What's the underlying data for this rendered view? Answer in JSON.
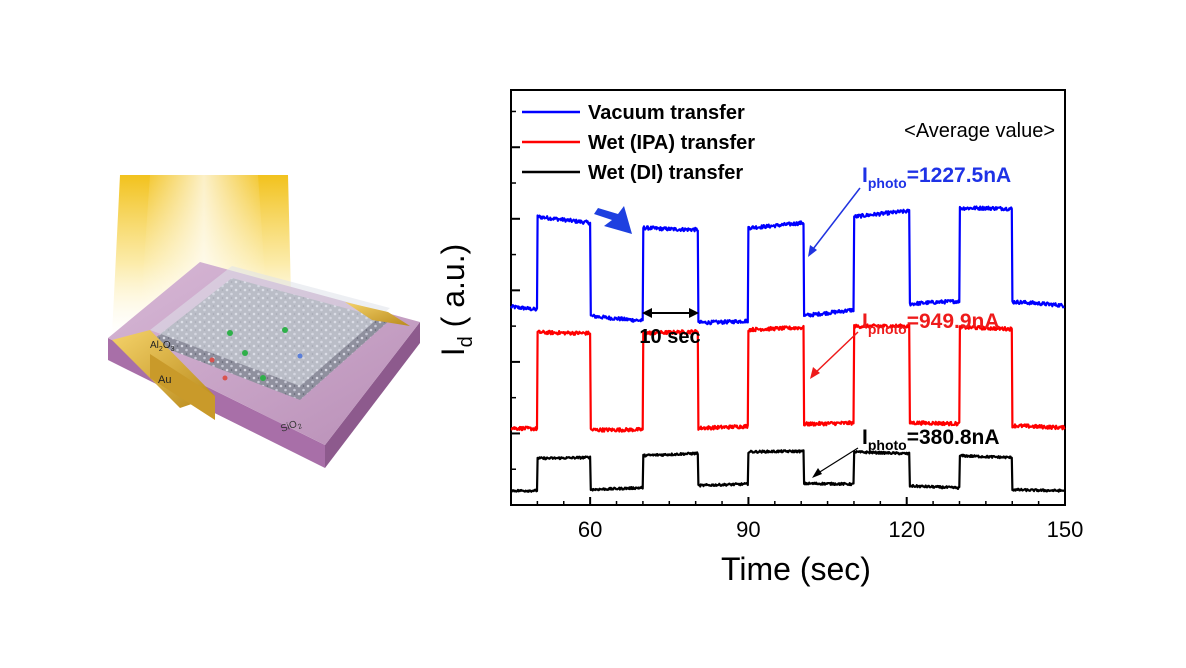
{
  "device": {
    "labels": {
      "oxide": "Al",
      "oxide_sub1": "2",
      "oxide_mid": "O",
      "oxide_sub2": "3",
      "electrode": "Au",
      "substrate": "SiO",
      "substrate_sub": "2"
    }
  },
  "chart_data": {
    "type": "line",
    "xlabel": "Time (sec)",
    "ylabel_main": "I",
    "ylabel_sub": "d",
    "ylabel_rest": " ( a.u.)",
    "xlim": [
      45,
      150
    ],
    "ylim": [
      0,
      5.8
    ],
    "xticks": [
      60,
      90,
      120,
      150
    ],
    "legend": {
      "placement": "top-left"
    },
    "series": [
      {
        "name": "Vacuum transfer",
        "color": "#0000ff",
        "low": 2.7,
        "high": 4.0,
        "noise": 0.025,
        "drift": 0.15,
        "on_periods": [
          [
            50,
            60
          ],
          [
            70,
            80.5
          ],
          [
            80.5,
            80.5
          ],
          [
            90,
            100.5
          ],
          [
            110,
            120.5
          ],
          [
            130,
            140
          ]
        ],
        "annotation": {
          "prefix": "I",
          "sub": "photo",
          "value": "=1227.5nA"
        }
      },
      {
        "name": "Wet (IPA) transfer",
        "color": "#ff0000",
        "low": 1.1,
        "high": 2.45,
        "noise": 0.025,
        "drift": 0.05,
        "on_periods": [
          [
            50,
            60
          ],
          [
            70,
            80.5
          ],
          [
            90,
            100.5
          ],
          [
            110,
            120.5
          ],
          [
            130,
            140
          ]
        ],
        "annotation": {
          "prefix": "I",
          "sub": "photo",
          "value": "=949.9nA"
        }
      },
      {
        "name": "Wet (DI) transfer",
        "color": "#000000",
        "low": 0.25,
        "high": 0.7,
        "noise": 0.015,
        "drift": 0.05,
        "on_periods": [
          [
            50,
            60
          ],
          [
            70,
            80.5
          ],
          [
            90,
            100.5
          ],
          [
            110,
            120.5
          ],
          [
            130,
            140
          ]
        ],
        "annotation": {
          "prefix": "I",
          "sub": "photo",
          "value": "=380.8nA"
        }
      }
    ],
    "annotations": {
      "average": "<Average value>",
      "period": "10 sec"
    }
  }
}
